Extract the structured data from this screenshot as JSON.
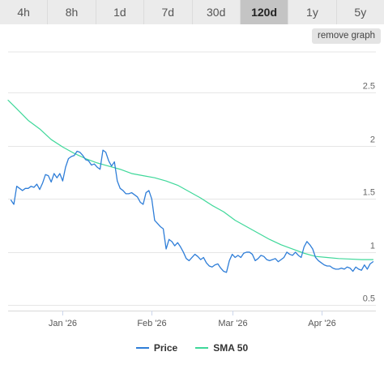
{
  "tabs": [
    {
      "label": "4h",
      "active": false
    },
    {
      "label": "8h",
      "active": false
    },
    {
      "label": "1d",
      "active": false
    },
    {
      "label": "7d",
      "active": false
    },
    {
      "label": "30d",
      "active": false
    },
    {
      "label": "120d",
      "active": true
    },
    {
      "label": "1y",
      "active": false
    },
    {
      "label": "5y",
      "active": false
    }
  ],
  "remove_button_label": "remove graph",
  "chart_data": {
    "type": "line",
    "title": "",
    "xlabel": "",
    "ylabel": "",
    "x_range": [
      "2025-12-13",
      "2026-04-20"
    ],
    "ylim": [
      0.45,
      2.9
    ],
    "yticks": [
      {
        "value": 0.5,
        "label": "0.5"
      },
      {
        "value": 1,
        "label": "1"
      },
      {
        "value": 1.5,
        "label": "1.5"
      },
      {
        "value": 2,
        "label": "2"
      },
      {
        "value": 2.5,
        "label": "2.5"
      }
    ],
    "xticks": [
      {
        "date": "2026-01-01",
        "label": "Jan '26"
      },
      {
        "date": "2026-02-01",
        "label": "Feb '26"
      },
      {
        "date": "2026-03-01",
        "label": "Mar '26"
      },
      {
        "date": "2026-04-01",
        "label": "Apr '26"
      }
    ],
    "grid": true,
    "legend": "bottom",
    "series": [
      {
        "name": "Price",
        "color": "#2f7ed8",
        "points": [
          [
            "2025-12-14",
            1.49
          ],
          [
            "2025-12-15",
            1.45
          ],
          [
            "2025-12-16",
            1.62
          ],
          [
            "2025-12-17",
            1.6
          ],
          [
            "2025-12-18",
            1.58
          ],
          [
            "2025-12-19",
            1.6
          ],
          [
            "2025-12-20",
            1.6
          ],
          [
            "2025-12-21",
            1.62
          ],
          [
            "2025-12-22",
            1.61
          ],
          [
            "2025-12-23",
            1.64
          ],
          [
            "2025-12-24",
            1.59
          ],
          [
            "2025-12-25",
            1.65
          ],
          [
            "2025-12-26",
            1.73
          ],
          [
            "2025-12-27",
            1.72
          ],
          [
            "2025-12-28",
            1.66
          ],
          [
            "2025-12-29",
            1.74
          ],
          [
            "2025-12-30",
            1.7
          ],
          [
            "2025-12-31",
            1.74
          ],
          [
            "2026-01-01",
            1.67
          ],
          [
            "2026-01-02",
            1.8
          ],
          [
            "2026-01-03",
            1.88
          ],
          [
            "2026-01-04",
            1.9
          ],
          [
            "2026-01-05",
            1.91
          ],
          [
            "2026-01-06",
            1.95
          ],
          [
            "2026-01-07",
            1.94
          ],
          [
            "2026-01-08",
            1.91
          ],
          [
            "2026-01-09",
            1.87
          ],
          [
            "2026-01-10",
            1.86
          ],
          [
            "2026-01-11",
            1.82
          ],
          [
            "2026-01-12",
            1.83
          ],
          [
            "2026-01-13",
            1.8
          ],
          [
            "2026-01-14",
            1.78
          ],
          [
            "2026-01-15",
            1.96
          ],
          [
            "2026-01-16",
            1.94
          ],
          [
            "2026-01-17",
            1.86
          ],
          [
            "2026-01-18",
            1.81
          ],
          [
            "2026-01-19",
            1.85
          ],
          [
            "2026-01-20",
            1.67
          ],
          [
            "2026-01-21",
            1.6
          ],
          [
            "2026-01-22",
            1.58
          ],
          [
            "2026-01-23",
            1.55
          ],
          [
            "2026-01-24",
            1.55
          ],
          [
            "2026-01-25",
            1.56
          ],
          [
            "2026-01-26",
            1.54
          ],
          [
            "2026-01-27",
            1.52
          ],
          [
            "2026-01-28",
            1.47
          ],
          [
            "2026-01-29",
            1.45
          ],
          [
            "2026-01-30",
            1.56
          ],
          [
            "2026-01-31",
            1.58
          ],
          [
            "2026-02-01",
            1.5
          ],
          [
            "2026-02-02",
            1.3
          ],
          [
            "2026-02-03",
            1.27
          ],
          [
            "2026-02-04",
            1.24
          ],
          [
            "2026-02-05",
            1.22
          ],
          [
            "2026-02-06",
            1.03
          ],
          [
            "2026-02-07",
            1.12
          ],
          [
            "2026-02-08",
            1.1
          ],
          [
            "2026-02-09",
            1.06
          ],
          [
            "2026-02-10",
            1.09
          ],
          [
            "2026-02-11",
            1.05
          ],
          [
            "2026-02-12",
            1.0
          ],
          [
            "2026-02-13",
            0.94
          ],
          [
            "2026-02-14",
            0.92
          ],
          [
            "2026-02-15",
            0.95
          ],
          [
            "2026-02-16",
            0.98
          ],
          [
            "2026-02-17",
            0.96
          ],
          [
            "2026-02-18",
            0.93
          ],
          [
            "2026-02-19",
            0.95
          ],
          [
            "2026-02-20",
            0.9
          ],
          [
            "2026-02-21",
            0.87
          ],
          [
            "2026-02-22",
            0.86
          ],
          [
            "2026-02-23",
            0.88
          ],
          [
            "2026-02-24",
            0.89
          ],
          [
            "2026-02-25",
            0.85
          ],
          [
            "2026-02-26",
            0.82
          ],
          [
            "2026-02-27",
            0.81
          ],
          [
            "2026-02-28",
            0.92
          ],
          [
            "2026-03-01",
            0.98
          ],
          [
            "2026-03-02",
            0.95
          ],
          [
            "2026-03-03",
            0.97
          ],
          [
            "2026-03-04",
            0.95
          ],
          [
            "2026-03-05",
            0.99
          ],
          [
            "2026-03-06",
            1.0
          ],
          [
            "2026-03-07",
            1.0
          ],
          [
            "2026-03-08",
            0.98
          ],
          [
            "2026-03-09",
            0.92
          ],
          [
            "2026-03-10",
            0.94
          ],
          [
            "2026-03-11",
            0.97
          ],
          [
            "2026-03-12",
            0.96
          ],
          [
            "2026-03-13",
            0.93
          ],
          [
            "2026-03-14",
            0.92
          ],
          [
            "2026-03-15",
            0.93
          ],
          [
            "2026-03-16",
            0.94
          ],
          [
            "2026-03-17",
            0.91
          ],
          [
            "2026-03-18",
            0.93
          ],
          [
            "2026-03-19",
            0.95
          ],
          [
            "2026-03-20",
            1.0
          ],
          [
            "2026-03-21",
            0.98
          ],
          [
            "2026-03-22",
            0.97
          ],
          [
            "2026-03-23",
            1.0
          ],
          [
            "2026-03-24",
            0.97
          ],
          [
            "2026-03-25",
            0.95
          ],
          [
            "2026-03-26",
            1.05
          ],
          [
            "2026-03-27",
            1.1
          ],
          [
            "2026-03-28",
            1.07
          ],
          [
            "2026-03-29",
            1.03
          ],
          [
            "2026-03-30",
            0.95
          ],
          [
            "2026-03-31",
            0.92
          ],
          [
            "2026-04-01",
            0.9
          ],
          [
            "2026-04-02",
            0.88
          ],
          [
            "2026-04-03",
            0.87
          ],
          [
            "2026-04-04",
            0.87
          ],
          [
            "2026-04-05",
            0.85
          ],
          [
            "2026-04-06",
            0.84
          ],
          [
            "2026-04-07",
            0.84
          ],
          [
            "2026-04-08",
            0.85
          ],
          [
            "2026-04-09",
            0.84
          ],
          [
            "2026-04-10",
            0.86
          ],
          [
            "2026-04-11",
            0.85
          ],
          [
            "2026-04-12",
            0.82
          ],
          [
            "2026-04-13",
            0.86
          ],
          [
            "2026-04-14",
            0.84
          ],
          [
            "2026-04-15",
            0.83
          ],
          [
            "2026-04-16",
            0.88
          ],
          [
            "2026-04-17",
            0.84
          ],
          [
            "2026-04-18",
            0.89
          ],
          [
            "2026-04-19",
            0.91
          ]
        ]
      },
      {
        "name": "SMA 50",
        "color": "#3fd89a",
        "points": [
          [
            "2025-12-13",
            2.43
          ],
          [
            "2025-12-16",
            2.35
          ],
          [
            "2025-12-20",
            2.24
          ],
          [
            "2025-12-24",
            2.16
          ],
          [
            "2025-12-28",
            2.06
          ],
          [
            "2026-01-01",
            1.99
          ],
          [
            "2026-01-05",
            1.93
          ],
          [
            "2026-01-09",
            1.88
          ],
          [
            "2026-01-13",
            1.84
          ],
          [
            "2026-01-17",
            1.81
          ],
          [
            "2026-01-21",
            1.78
          ],
          [
            "2026-01-25",
            1.74
          ],
          [
            "2026-01-29",
            1.72
          ],
          [
            "2026-02-02",
            1.7
          ],
          [
            "2026-02-06",
            1.67
          ],
          [
            "2026-02-10",
            1.63
          ],
          [
            "2026-02-14",
            1.57
          ],
          [
            "2026-02-18",
            1.51
          ],
          [
            "2026-02-22",
            1.44
          ],
          [
            "2026-02-26",
            1.38
          ],
          [
            "2026-03-02",
            1.3
          ],
          [
            "2026-03-06",
            1.24
          ],
          [
            "2026-03-10",
            1.18
          ],
          [
            "2026-03-14",
            1.12
          ],
          [
            "2026-03-18",
            1.07
          ],
          [
            "2026-03-22",
            1.03
          ],
          [
            "2026-03-26",
            0.99
          ],
          [
            "2026-03-30",
            0.96
          ],
          [
            "2026-04-03",
            0.95
          ],
          [
            "2026-04-07",
            0.94
          ],
          [
            "2026-04-11",
            0.935
          ],
          [
            "2026-04-15",
            0.93
          ],
          [
            "2026-04-19",
            0.93
          ]
        ]
      }
    ]
  }
}
